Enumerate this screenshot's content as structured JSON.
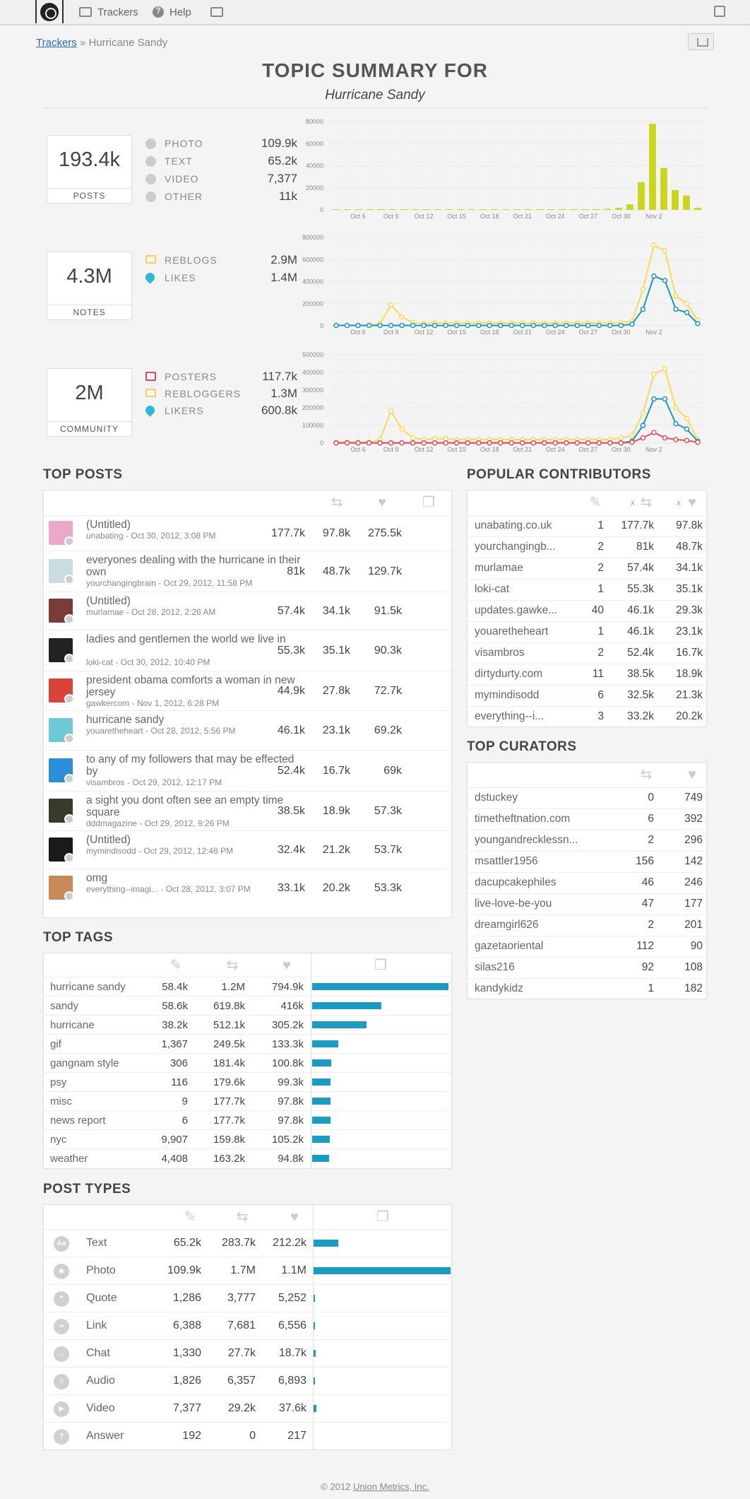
{
  "nav": {
    "trackers": "Trackers",
    "help": "Help"
  },
  "breadcrumb": {
    "root": "Trackers",
    "separator": " » ",
    "current": "Hurricane Sandy"
  },
  "title": "TOPIC SUMMARY FOR",
  "subtitle": "Hurricane Sandy",
  "summary": {
    "posts": {
      "value": "193.4k",
      "label": "POSTS",
      "stats": [
        {
          "label": "PHOTO",
          "value": "109.9k",
          "icon": "camera-icon"
        },
        {
          "label": "TEXT",
          "value": "65.2k",
          "icon": "text-icon"
        },
        {
          "label": "VIDEO",
          "value": "7,377",
          "icon": "video-icon"
        },
        {
          "label": "OTHER",
          "value": "11k",
          "icon": "asterisk-icon"
        }
      ]
    },
    "notes": {
      "value": "4.3M",
      "label": "NOTES",
      "stats": [
        {
          "label": "REBLOGS",
          "value": "2.9M",
          "icon": "reblog-icon"
        },
        {
          "label": "LIKES",
          "value": "1.4M",
          "icon": "heart-icon"
        }
      ]
    },
    "community": {
      "value": "2M",
      "label": "COMMUNITY",
      "stats": [
        {
          "label": "POSTERS",
          "value": "117.7k",
          "icon": "pencil-icon"
        },
        {
          "label": "REBLOGGERS",
          "value": "1.3M",
          "icon": "reblog-icon"
        },
        {
          "label": "LIKERS",
          "value": "600.8k",
          "icon": "heart-icon"
        }
      ]
    }
  },
  "chart_data": [
    {
      "type": "bar",
      "xlabels": [
        "Oct 6",
        "Oct 9",
        "Oct 12",
        "Oct 15",
        "Oct 18",
        "Oct 21",
        "Oct 24",
        "Oct 27",
        "Oct 30",
        "Nov 2"
      ],
      "yticks": [
        "0",
        "20000",
        "40000",
        "60000",
        "80000"
      ],
      "ylim": [
        0,
        80000
      ],
      "values": [
        200,
        300,
        300,
        300,
        300,
        300,
        300,
        300,
        300,
        300,
        300,
        300,
        300,
        300,
        300,
        300,
        300,
        300,
        300,
        300,
        300,
        300,
        300,
        500,
        1000,
        2000,
        5000,
        25000,
        78000,
        38000,
        18000,
        13000,
        2000
      ],
      "color": "#cbd51b"
    },
    {
      "type": "line",
      "xlabels": [
        "Oct 6",
        "Oct 9",
        "Oct 12",
        "Oct 15",
        "Oct 18",
        "Oct 21",
        "Oct 24",
        "Oct 27",
        "Oct 30",
        "Nov 2"
      ],
      "yticks": [
        "0",
        "200000",
        "400000",
        "600000",
        "800000"
      ],
      "ylim": [
        0,
        800000
      ],
      "series": [
        {
          "color": "#fcd75a",
          "values": [
            5000,
            5000,
            5000,
            5000,
            20000,
            190000,
            80000,
            30000,
            20000,
            25000,
            25000,
            25000,
            25000,
            25000,
            25000,
            25000,
            25000,
            25000,
            25000,
            25000,
            25000,
            25000,
            25000,
            25000,
            25000,
            25000,
            30000,
            40000,
            330000,
            730000,
            680000,
            270000,
            200000,
            50000
          ]
        },
        {
          "color": "#1897bf",
          "values": [
            3000,
            3000,
            3000,
            3000,
            3000,
            3000,
            3000,
            3000,
            3000,
            3000,
            3000,
            3000,
            3000,
            3000,
            3000,
            3000,
            3000,
            3000,
            3000,
            3000,
            3000,
            3000,
            3000,
            3000,
            3000,
            3000,
            3000,
            15000,
            150000,
            450000,
            410000,
            150000,
            120000,
            20000
          ]
        }
      ]
    },
    {
      "type": "line",
      "xlabels": [
        "Oct 6",
        "Oct 9",
        "Oct 12",
        "Oct 15",
        "Oct 18",
        "Oct 21",
        "Oct 24",
        "Oct 27",
        "Oct 30",
        "Nov 2"
      ],
      "yticks": [
        "0",
        "100000",
        "200000",
        "300000",
        "400000",
        "500000"
      ],
      "ylim": [
        0,
        500000
      ],
      "series": [
        {
          "color": "#fcd75a",
          "values": [
            5000,
            5000,
            5000,
            5000,
            20000,
            180000,
            80000,
            30000,
            20000,
            25000,
            25000,
            20000,
            20000,
            20000,
            20000,
            20000,
            20000,
            20000,
            20000,
            20000,
            20000,
            20000,
            20000,
            20000,
            20000,
            20000,
            30000,
            40000,
            170000,
            390000,
            420000,
            200000,
            140000,
            20000
          ]
        },
        {
          "color": "#1897bf",
          "values": [
            2000,
            2000,
            2000,
            2000,
            2000,
            2000,
            2000,
            2000,
            2000,
            2000,
            2000,
            2000,
            2000,
            2000,
            2000,
            2000,
            2000,
            2000,
            2000,
            2000,
            2000,
            2000,
            2000,
            2000,
            2000,
            2000,
            2000,
            10000,
            100000,
            250000,
            250000,
            110000,
            80000,
            10000
          ]
        },
        {
          "color": "#e8505b",
          "values": [
            1000,
            1000,
            1000,
            1000,
            1000,
            1000,
            1000,
            1000,
            1000,
            1000,
            1000,
            1000,
            1000,
            1000,
            1000,
            1000,
            1000,
            1000,
            1000,
            1000,
            1000,
            1000,
            1000,
            1000,
            1000,
            1000,
            1000,
            5000,
            30000,
            60000,
            30000,
            20000,
            15000,
            5000
          ]
        }
      ]
    }
  ],
  "top_posts": {
    "title": "TOP POSTS",
    "rows": [
      {
        "title": "(Untitled)",
        "meta": "unabating - Oct 30, 2012, 3:08 PM",
        "reblogs": "177.7k",
        "likes": "97.8k",
        "notes": "275.5k",
        "color": "#e9a9c8"
      },
      {
        "title": "everyones dealing with the hurricane in their own",
        "meta": "yourchangingbrain - Oct 29, 2012, 11:58 PM",
        "reblogs": "81k",
        "likes": "48.7k",
        "notes": "129.7k",
        "color": "#c9dde0"
      },
      {
        "title": "(Untitled)",
        "meta": "murlamae - Oct 28, 2012, 2:26 AM",
        "reblogs": "57.4k",
        "likes": "34.1k",
        "notes": "91.5k",
        "color": "#7b3b3a"
      },
      {
        "title": "ladies and gentlemen the world we live in",
        "meta": "loki-cat - Oct 30, 2012, 10:40 PM",
        "reblogs": "55.3k",
        "likes": "35.1k",
        "notes": "90.3k",
        "color": "#222222"
      },
      {
        "title": "president obama comforts a woman in new jersey",
        "meta": "gawkercom - Nov 1, 2012, 6:28 PM",
        "reblogs": "44.9k",
        "likes": "27.8k",
        "notes": "72.7k",
        "color": "#d9433a"
      },
      {
        "title": "hurricane sandy",
        "meta": "youaretheheart - Oct 28, 2012, 5:56 PM",
        "reblogs": "46.1k",
        "likes": "23.1k",
        "notes": "69.2k",
        "color": "#6fc8d6"
      },
      {
        "title": "to any of my followers that may be effected by",
        "meta": "visambros - Oct 29, 2012, 12:17 PM",
        "reblogs": "52.4k",
        "likes": "16.7k",
        "notes": "69k",
        "color": "#2a8ed8"
      },
      {
        "title": "a sight you dont often see an empty time square",
        "meta": "dddmagazine - Oct 29, 2012, 9:26 PM",
        "reblogs": "38.5k",
        "likes": "18.9k",
        "notes": "57.3k",
        "color": "#3a3a2a"
      },
      {
        "title": "(Untitled)",
        "meta": "mymindisodd - Oct 29, 2012, 12:48 PM",
        "reblogs": "32.4k",
        "likes": "21.2k",
        "notes": "53.7k",
        "color": "#1a1a1a"
      },
      {
        "title": "omg",
        "meta": "everything--imagi... - Oct 28, 2012, 3:07 PM",
        "reblogs": "33.1k",
        "likes": "20.2k",
        "notes": "53.3k",
        "color": "#c98a5a"
      }
    ]
  },
  "popular_contributors": {
    "title": "POPULAR CONTRIBUTORS",
    "x1": "x",
    "x2": "x",
    "rows": [
      {
        "name": "unabating.co.uk",
        "posts": "1",
        "reblogs": "177.7k",
        "likes": "97.8k"
      },
      {
        "name": "yourchangingb...",
        "posts": "2",
        "reblogs": "81k",
        "likes": "48.7k"
      },
      {
        "name": "murlamae",
        "posts": "2",
        "reblogs": "57.4k",
        "likes": "34.1k"
      },
      {
        "name": "loki-cat",
        "posts": "1",
        "reblogs": "55.3k",
        "likes": "35.1k"
      },
      {
        "name": "updates.gawke...",
        "posts": "40",
        "reblogs": "46.1k",
        "likes": "29.3k"
      },
      {
        "name": "youaretheheart",
        "posts": "1",
        "reblogs": "46.1k",
        "likes": "23.1k"
      },
      {
        "name": "visambros",
        "posts": "2",
        "reblogs": "52.4k",
        "likes": "16.7k"
      },
      {
        "name": "dirtydurty.com",
        "posts": "11",
        "reblogs": "38.5k",
        "likes": "18.9k"
      },
      {
        "name": "mymindisodd",
        "posts": "6",
        "reblogs": "32.5k",
        "likes": "21.3k"
      },
      {
        "name": "everything--i...",
        "posts": "3",
        "reblogs": "33.2k",
        "likes": "20.2k"
      }
    ]
  },
  "top_curators": {
    "title": "TOP CURATORS",
    "rows": [
      {
        "name": "dstuckey",
        "reblogs": "0",
        "likes": "749"
      },
      {
        "name": "timetheftnation.com",
        "reblogs": "6",
        "likes": "392"
      },
      {
        "name": "youngandrecklessn...",
        "reblogs": "2",
        "likes": "296"
      },
      {
        "name": "msattler1956",
        "reblogs": "156",
        "likes": "142"
      },
      {
        "name": "dacupcakephiles",
        "reblogs": "46",
        "likes": "246"
      },
      {
        "name": "live-love-be-you",
        "reblogs": "47",
        "likes": "177"
      },
      {
        "name": "dreamgirl626",
        "reblogs": "2",
        "likes": "201"
      },
      {
        "name": "gazetaoriental",
        "reblogs": "112",
        "likes": "90"
      },
      {
        "name": "silas216",
        "reblogs": "92",
        "likes": "108"
      },
      {
        "name": "kandykidz",
        "reblogs": "1",
        "likes": "182"
      }
    ]
  },
  "top_tags": {
    "title": "TOP TAGS",
    "rows": [
      {
        "name": "hurricane sandy",
        "posts": "58.4k",
        "reblogs": "1.2M",
        "likes": "794.9k",
        "share": 1.0
      },
      {
        "name": "sandy",
        "posts": "58.6k",
        "reblogs": "619.8k",
        "likes": "416k",
        "share": 0.51
      },
      {
        "name": "hurricane",
        "posts": "38.2k",
        "reblogs": "512.1k",
        "likes": "305.2k",
        "share": 0.4
      },
      {
        "name": "gif",
        "posts": "1,367",
        "reblogs": "249.5k",
        "likes": "133.3k",
        "share": 0.19
      },
      {
        "name": "gangnam style",
        "posts": "306",
        "reblogs": "181.4k",
        "likes": "100.8k",
        "share": 0.14
      },
      {
        "name": "psy",
        "posts": "116",
        "reblogs": "179.6k",
        "likes": "99.3k",
        "share": 0.135
      },
      {
        "name": "misc",
        "posts": "9",
        "reblogs": "177.7k",
        "likes": "97.8k",
        "share": 0.135
      },
      {
        "name": "news report",
        "posts": "6",
        "reblogs": "177.7k",
        "likes": "97.8k",
        "share": 0.135
      },
      {
        "name": "nyc",
        "posts": "9,907",
        "reblogs": "159.8k",
        "likes": "105.2k",
        "share": 0.13
      },
      {
        "name": "weather",
        "posts": "4,408",
        "reblogs": "163.2k",
        "likes": "94.8k",
        "share": 0.125
      }
    ]
  },
  "post_types": {
    "title": "POST TYPES",
    "rows": [
      {
        "name": "Text",
        "posts": "65.2k",
        "reblogs": "283.7k",
        "likes": "212.2k",
        "share": 0.18,
        "icon": "text-icon",
        "glyph": "Aa"
      },
      {
        "name": "Photo",
        "posts": "109.9k",
        "reblogs": "1.7M",
        "likes": "1.1M",
        "share": 1.0,
        "icon": "camera-icon",
        "glyph": "◉"
      },
      {
        "name": "Quote",
        "posts": "1,286",
        "reblogs": "3,777",
        "likes": "5,252",
        "share": 0.01,
        "icon": "quote-icon",
        "glyph": "❝"
      },
      {
        "name": "Link",
        "posts": "6,388",
        "reblogs": "7,681",
        "likes": "6,556",
        "share": 0.01,
        "icon": "link-icon",
        "glyph": "∞"
      },
      {
        "name": "Chat",
        "posts": "1,330",
        "reblogs": "27.7k",
        "likes": "18.7k",
        "share": 0.015,
        "icon": "chat-icon",
        "glyph": "…"
      },
      {
        "name": "Audio",
        "posts": "1,826",
        "reblogs": "6,357",
        "likes": "6,893",
        "share": 0.01,
        "icon": "headphones-icon",
        "glyph": "♫"
      },
      {
        "name": "Video",
        "posts": "7,377",
        "reblogs": "29.2k",
        "likes": "37.6k",
        "share": 0.02,
        "icon": "video-icon",
        "glyph": "▶"
      },
      {
        "name": "Answer",
        "posts": "192",
        "reblogs": "0",
        "likes": "217",
        "share": 0.0,
        "icon": "speech-icon",
        "glyph": "?"
      }
    ]
  },
  "footer": {
    "prefix": "© 2012 ",
    "link": "Union Metrics, Inc."
  }
}
